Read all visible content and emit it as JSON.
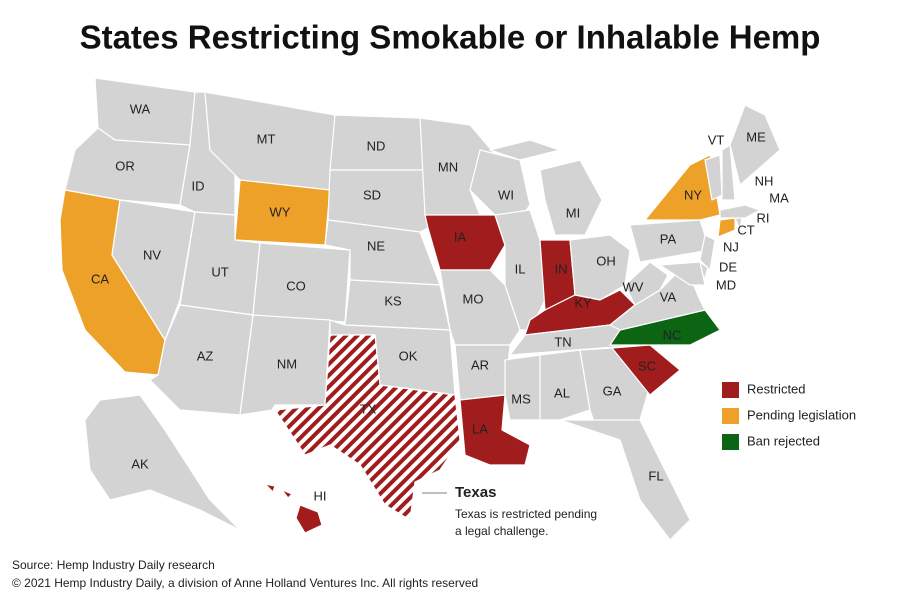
{
  "title": "States Restricting Smokable or Inhalable Hemp",
  "legend": [
    {
      "label": "Restricted",
      "color": "#a11d1d"
    },
    {
      "label": "Pending legislation",
      "color": "#eda128"
    },
    {
      "label": "Ban rejected",
      "color": "#0b6512"
    }
  ],
  "states": [
    {
      "label": "WA"
    },
    {
      "label": "OR"
    },
    {
      "label": "CA",
      "legend": 1
    },
    {
      "label": "NV"
    },
    {
      "label": "ID"
    },
    {
      "label": "MT"
    },
    {
      "label": "WY",
      "legend": 1
    },
    {
      "label": "UT"
    },
    {
      "label": "CO"
    },
    {
      "label": "AZ"
    },
    {
      "label": "NM"
    },
    {
      "label": "ND"
    },
    {
      "label": "SD"
    },
    {
      "label": "NE"
    },
    {
      "label": "KS"
    },
    {
      "label": "OK"
    },
    {
      "label": "TX",
      "legend": 0,
      "hatched": true
    },
    {
      "label": "MN"
    },
    {
      "label": "IA",
      "legend": 0
    },
    {
      "label": "MO"
    },
    {
      "label": "AR"
    },
    {
      "label": "LA",
      "legend": 0
    },
    {
      "label": "WI"
    },
    {
      "label": "IL"
    },
    {
      "label": "MI"
    },
    {
      "label": "IN",
      "legend": 0
    },
    {
      "label": "OH"
    },
    {
      "label": "KY",
      "legend": 0
    },
    {
      "label": "TN"
    },
    {
      "label": "MS"
    },
    {
      "label": "AL"
    },
    {
      "label": "GA"
    },
    {
      "label": "FL"
    },
    {
      "label": "SC",
      "legend": 0
    },
    {
      "label": "NC",
      "legend": 2
    },
    {
      "label": "VA"
    },
    {
      "label": "WV"
    },
    {
      "label": "PA"
    },
    {
      "label": "NY",
      "legend": 1
    },
    {
      "label": "NJ"
    },
    {
      "label": "DE"
    },
    {
      "label": "MD"
    },
    {
      "label": "CT",
      "legend": 1
    },
    {
      "label": "RI"
    },
    {
      "label": "MA"
    },
    {
      "label": "VT"
    },
    {
      "label": "NH"
    },
    {
      "label": "ME"
    },
    {
      "label": "AK"
    },
    {
      "label": "HI",
      "legend": 0
    }
  ],
  "texas_note": {
    "title": "Texas",
    "lines": [
      "Texas is restricted pending",
      "a legal challenge."
    ]
  },
  "footer": [
    "Source: Hemp Industry Daily research",
    "© 2021 Hemp Industry Daily, a division of Anne Holland Ventures Inc. All rights reserved"
  ]
}
